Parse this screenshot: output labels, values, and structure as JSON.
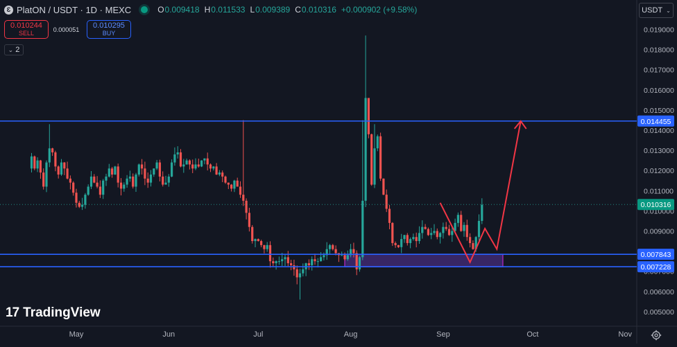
{
  "header": {
    "coin_icon": "Ɛ",
    "symbol": "PlatON / USDT · 1D · MEXC",
    "ohlc": [
      {
        "k": "O",
        "v": "0.009418"
      },
      {
        "k": "H",
        "v": "0.011533"
      },
      {
        "k": "L",
        "v": "0.009389"
      },
      {
        "k": "C",
        "v": "0.010316"
      },
      {
        "k": "",
        "v": "+0.000902 (+9.58%)"
      }
    ],
    "live_color": "#089981"
  },
  "trade": {
    "sell_price": "0.010244",
    "sell_label": "SELL",
    "spread": "0.000051",
    "buy_price": "0.010295",
    "buy_label": "BUY"
  },
  "indicators_toggle": {
    "count": "2",
    "icon": "chevron-down-icon"
  },
  "currency": {
    "label": "USDT",
    "icon": "chevron-down-icon"
  },
  "brand": {
    "mark": "17",
    "name": "TradingView"
  },
  "settings": {
    "icon": "gear-icon"
  },
  "colors": {
    "background": "#131722",
    "up": "#26a69a",
    "down": "#ef5350",
    "level_line": "#2962ff",
    "zone_fill": "#673ab7",
    "arrow": "#f23645",
    "axis_text": "#b2b5be"
  },
  "chart_data": {
    "type": "candlestick",
    "y_axis_ticks": [
      "0.019000",
      "0.018000",
      "0.017000",
      "0.016000",
      "0.015000",
      "0.014000",
      "0.013000",
      "0.012000",
      "0.011000",
      "0.010000",
      "0.009000",
      "0.008000",
      "0.007000",
      "0.006000",
      "0.005000"
    ],
    "x_axis_ticks": [
      "May",
      "Jun",
      "Jul",
      "Aug",
      "Sep",
      "Oct",
      "Nov"
    ],
    "price_tags": [
      {
        "value": "0.014455",
        "style": "level"
      },
      {
        "value": "0.010316",
        "style": "last"
      },
      {
        "value": "0.007843",
        "style": "level"
      },
      {
        "value": "0.007228",
        "style": "level"
      }
    ],
    "levels": [
      0.014455,
      0.007843,
      0.007228
    ],
    "last_price": 0.010316,
    "zone": {
      "from": "2024-07-30",
      "to": "2024-09-21",
      "top": 0.007843,
      "bottom": 0.007228
    },
    "projection_path": [
      [
        "2024-08-31",
        0.0104
      ],
      [
        "2024-09-10",
        0.00745
      ],
      [
        "2024-09-15",
        0.00912
      ],
      [
        "2024-09-19",
        0.0081
      ],
      [
        "2024-09-27",
        0.01445
      ]
    ],
    "arrow_head_at": [
      "2024-09-27",
      0.01445
    ],
    "candles_daily": {
      "start": "2024-04-16",
      "closes": [
        0.0127,
        0.0121,
        0.0125,
        0.0119,
        0.0112,
        0.0124,
        0.0131,
        0.0129,
        0.0122,
        0.0118,
        0.0124,
        0.0121,
        0.0116,
        0.0114,
        0.0109,
        0.0104,
        0.0102,
        0.0103,
        0.0108,
        0.0112,
        0.0117,
        0.0114,
        0.0112,
        0.0108,
        0.0115,
        0.0117,
        0.0121,
        0.0118,
        0.0122,
        0.0114,
        0.0111,
        0.0113,
        0.0116,
        0.0117,
        0.0112,
        0.0118,
        0.0123,
        0.0121,
        0.0116,
        0.0114,
        0.0118,
        0.0121,
        0.0124,
        0.0117,
        0.0113,
        0.0114,
        0.0117,
        0.0124,
        0.0128,
        0.0129,
        0.0122,
        0.0123,
        0.0125,
        0.0123,
        0.0121,
        0.0123,
        0.0122,
        0.0125,
        0.0126,
        0.0123,
        0.0121,
        0.0122,
        0.0118,
        0.0119,
        0.0117,
        0.0114,
        0.0113,
        0.0111,
        0.0115,
        0.0112,
        0.0108,
        0.0105,
        0.0099,
        0.0092,
        0.0085,
        0.0086,
        0.0085,
        0.0083,
        0.0081,
        0.0083,
        0.0075,
        0.0074,
        0.0075,
        0.0075,
        0.0076,
        0.0077,
        0.0074,
        0.0073,
        0.0071,
        0.0067,
        0.0069,
        0.0071,
        0.0074,
        0.0073,
        0.0076,
        0.0075,
        0.0075,
        0.0077,
        0.0078,
        0.0081,
        0.0083,
        0.0081,
        0.0079,
        0.0078,
        0.0078,
        0.0076,
        0.0078,
        0.0081,
        0.0079,
        0.0071,
        0.0077,
        0.0105,
        0.0156,
        0.0138,
        0.0113,
        0.0131,
        0.0137,
        0.0116,
        0.0108,
        0.0101,
        0.0094,
        0.0084,
        0.0083,
        0.0082,
        0.0086,
        0.0088,
        0.0084,
        0.0086,
        0.0087,
        0.0085,
        0.0089,
        0.0092,
        0.0091,
        0.0088,
        0.0089,
        0.009,
        0.0087,
        0.0089,
        0.0092,
        0.0091,
        0.0088,
        0.009,
        0.0094,
        0.0098,
        0.009,
        0.0093,
        0.0087,
        0.0084,
        0.0081,
        0.0087,
        0.0095,
        0.0103
      ]
    }
  }
}
